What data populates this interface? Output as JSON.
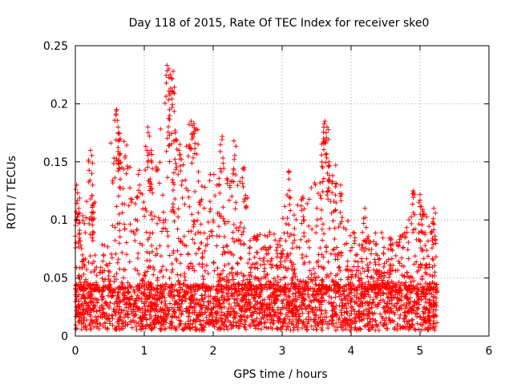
{
  "chart_data": {
    "type": "scatter",
    "title": "Day 118 of 2015, Rate Of TEC Index for receiver ske0",
    "xlabel": "GPS time / hours",
    "ylabel": "ROTI / TECUs",
    "xlim": [
      0,
      6
    ],
    "ylim": [
      0,
      0.25
    ],
    "grid": true,
    "marker": "plus",
    "color": "#ff0000",
    "x_ticks": [
      0,
      1,
      2,
      3,
      4,
      5,
      6
    ],
    "y_ticks": [
      0,
      0.05,
      0.1,
      0.15,
      0.2,
      0.25
    ],
    "x_tick_labels": [
      "0",
      "1",
      "2",
      "3",
      "4",
      "5",
      "6"
    ],
    "y_tick_labels": [
      "0",
      "0.05",
      "0.1",
      "0.15",
      "0.2",
      "0.25"
    ],
    "series": [
      {
        "name": "ROTI",
        "x_range": [
          0.0,
          5.25
        ],
        "baseline_range": [
          0.005,
          0.045
        ],
        "notable_points": [
          {
            "x": 0.02,
            "y": 0.13
          },
          {
            "x": 0.05,
            "y": 0.11
          },
          {
            "x": 0.22,
            "y": 0.16
          },
          {
            "x": 0.25,
            "y": 0.13
          },
          {
            "x": 0.6,
            "y": 0.195
          },
          {
            "x": 0.62,
            "y": 0.18
          },
          {
            "x": 0.65,
            "y": 0.17
          },
          {
            "x": 1.05,
            "y": 0.18
          },
          {
            "x": 1.1,
            "y": 0.16
          },
          {
            "x": 1.33,
            "y": 0.233
          },
          {
            "x": 1.38,
            "y": 0.225
          },
          {
            "x": 1.42,
            "y": 0.228
          },
          {
            "x": 1.37,
            "y": 0.19
          },
          {
            "x": 1.45,
            "y": 0.175
          },
          {
            "x": 1.52,
            "y": 0.165
          },
          {
            "x": 1.68,
            "y": 0.185
          },
          {
            "x": 1.72,
            "y": 0.183
          },
          {
            "x": 2.13,
            "y": 0.172
          },
          {
            "x": 2.3,
            "y": 0.168
          },
          {
            "x": 2.45,
            "y": 0.145
          },
          {
            "x": 3.1,
            "y": 0.142
          },
          {
            "x": 3.3,
            "y": 0.12
          },
          {
            "x": 3.62,
            "y": 0.185
          },
          {
            "x": 3.65,
            "y": 0.18
          },
          {
            "x": 3.6,
            "y": 0.17
          },
          {
            "x": 3.68,
            "y": 0.15
          },
          {
            "x": 3.85,
            "y": 0.13
          },
          {
            "x": 4.2,
            "y": 0.11
          },
          {
            "x": 4.9,
            "y": 0.125
          },
          {
            "x": 5.0,
            "y": 0.122
          },
          {
            "x": 5.05,
            "y": 0.105
          },
          {
            "x": 5.2,
            "y": 0.11
          }
        ]
      }
    ]
  }
}
